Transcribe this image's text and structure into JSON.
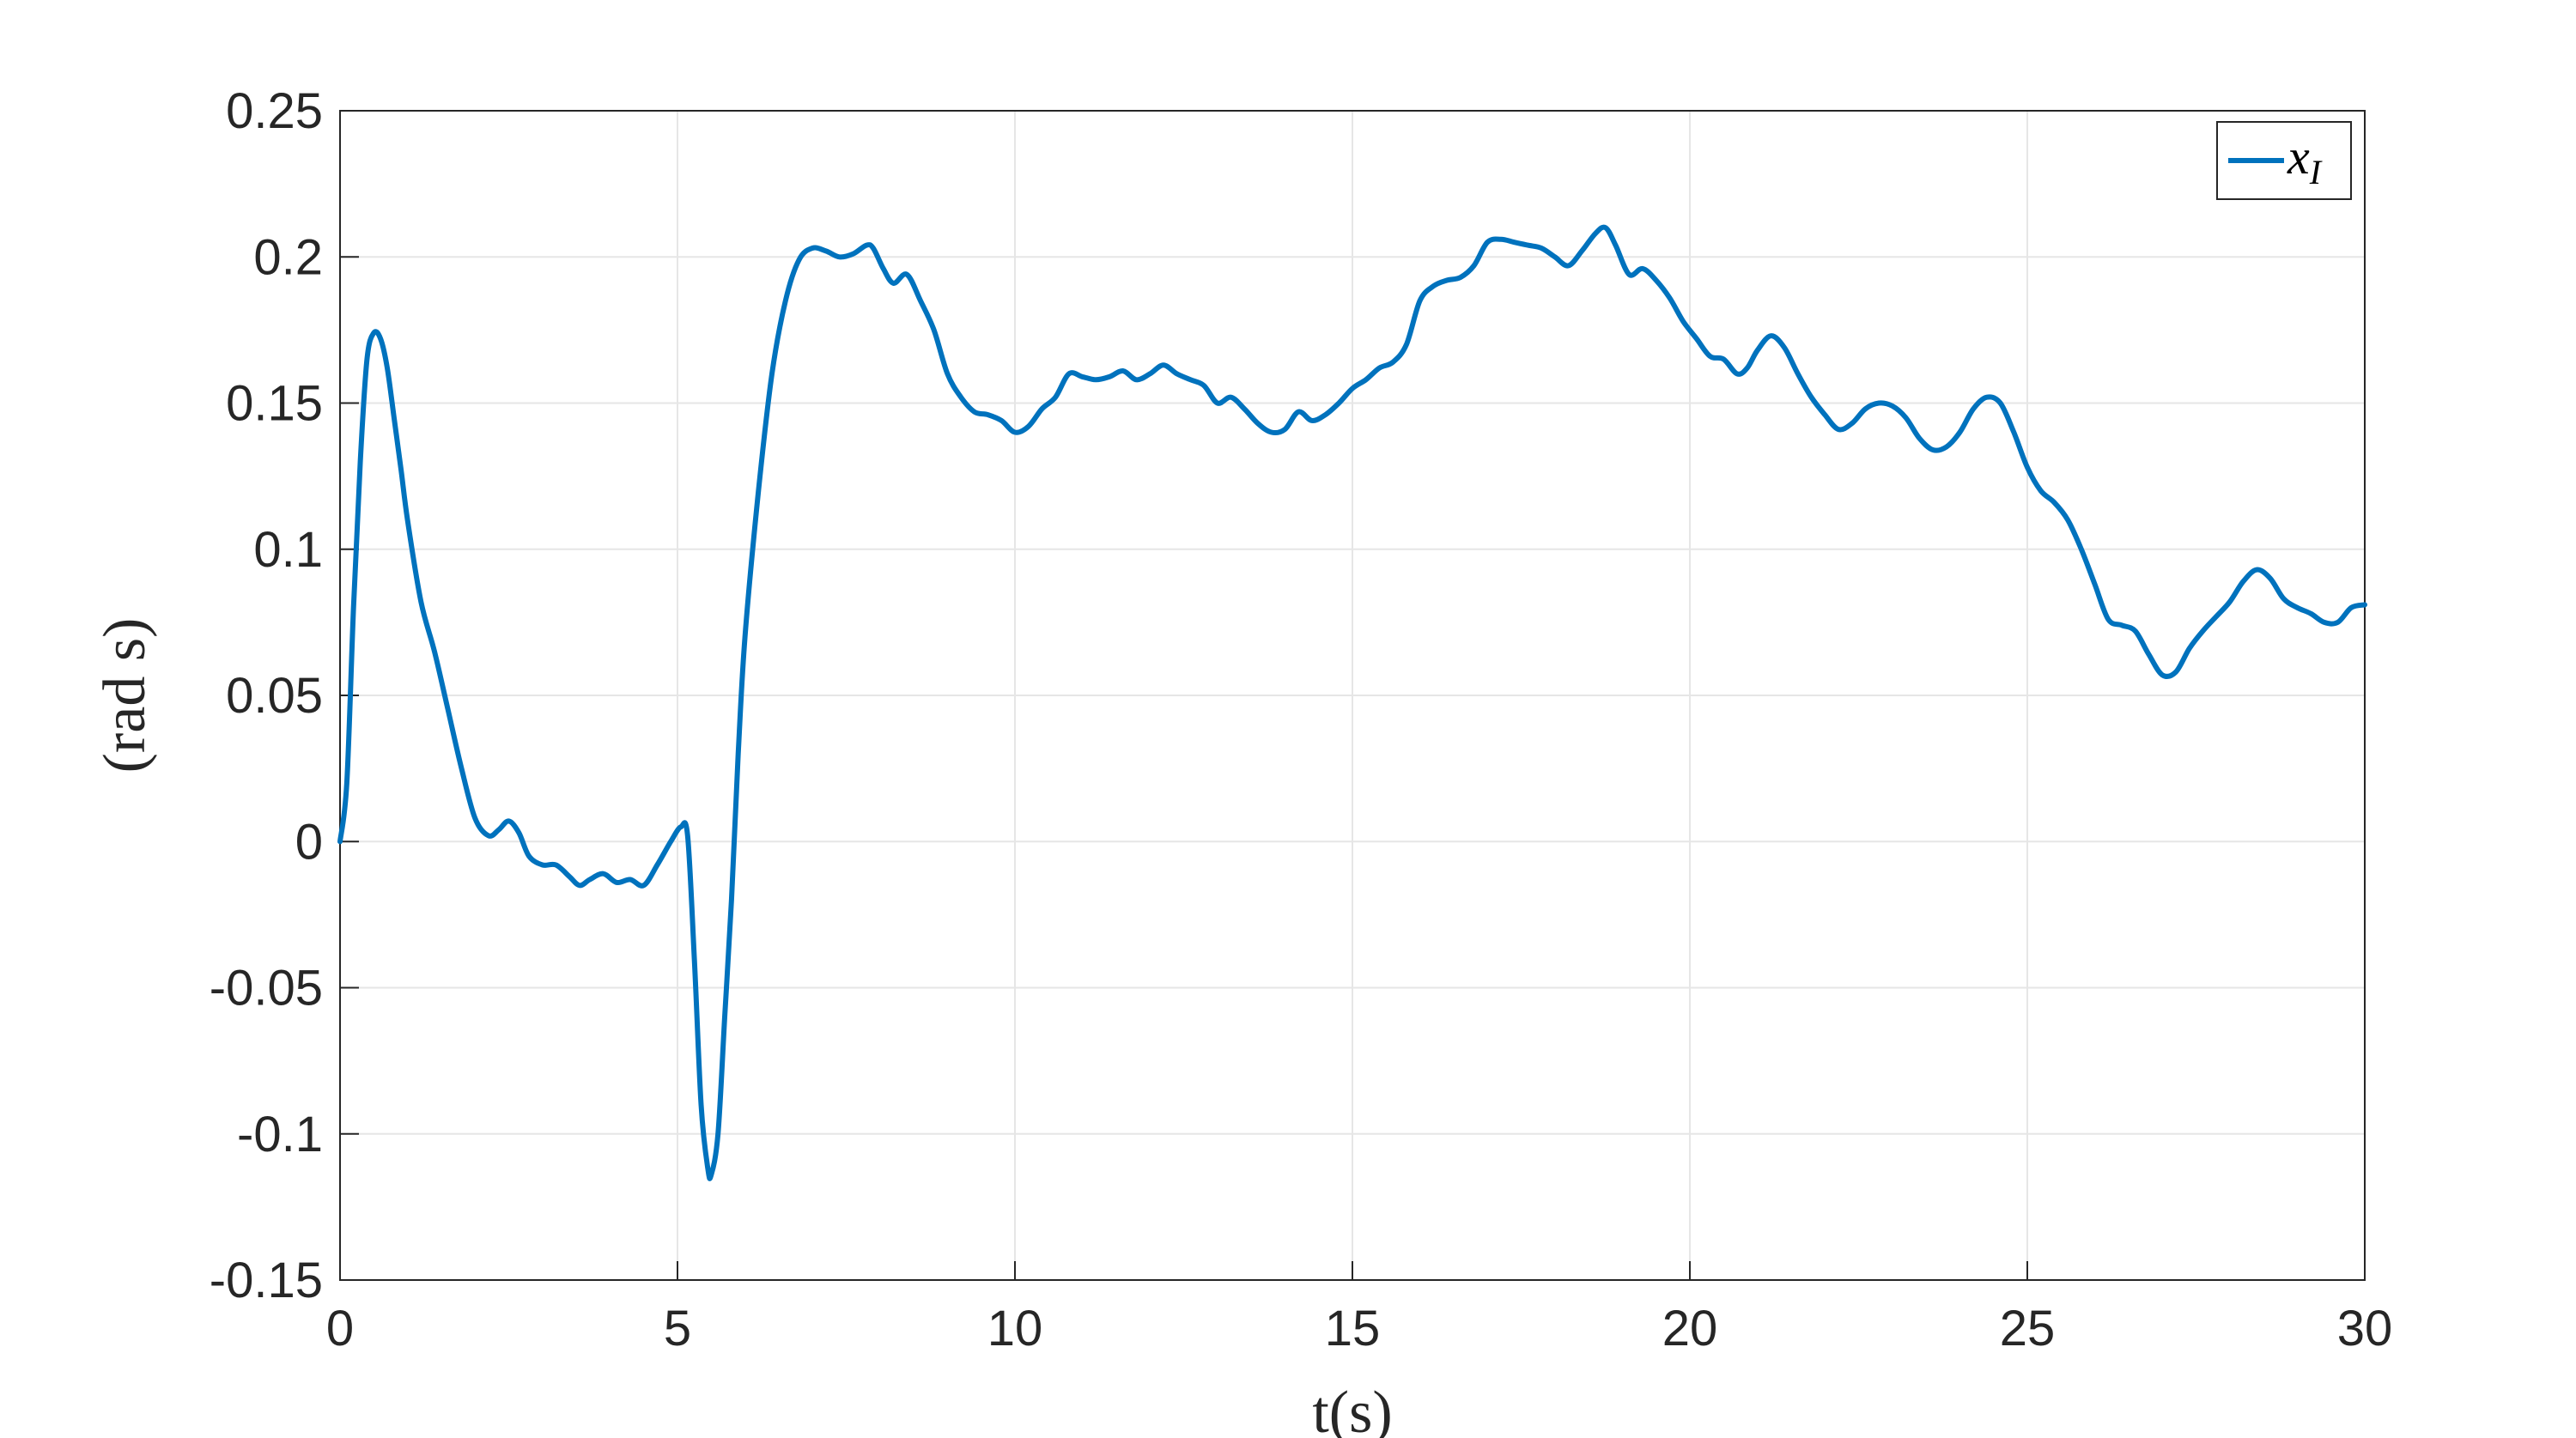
{
  "chart_data": {
    "type": "line",
    "title": "",
    "xlabel": "t(s)",
    "ylabel": "(rad s)",
    "xlim": [
      0,
      30
    ],
    "ylim": [
      -0.15,
      0.25
    ],
    "xticks": [
      "0",
      "5",
      "10",
      "15",
      "20",
      "25",
      "30"
    ],
    "yticks": [
      "0.25",
      "0.2",
      "0.15",
      "0.1",
      "0.05",
      "0",
      "-0.05",
      "-0.1",
      "-0.15"
    ],
    "grid": true,
    "legend_position": "top-right",
    "series": [
      {
        "name": "x_I",
        "color": "#0072BD",
        "points": [
          [
            0,
            0
          ],
          [
            0.1,
            0.02
          ],
          [
            0.2,
            0.08
          ],
          [
            0.3,
            0.13
          ],
          [
            0.4,
            0.165
          ],
          [
            0.5,
            0.174
          ],
          [
            0.6,
            0.172
          ],
          [
            0.7,
            0.162
          ],
          [
            0.8,
            0.145
          ],
          [
            0.9,
            0.128
          ],
          [
            1.0,
            0.11
          ],
          [
            1.2,
            0.082
          ],
          [
            1.4,
            0.065
          ],
          [
            1.6,
            0.045
          ],
          [
            1.8,
            0.025
          ],
          [
            2.0,
            0.008
          ],
          [
            2.2,
            0.002
          ],
          [
            2.35,
            0.004
          ],
          [
            2.5,
            0.007
          ],
          [
            2.65,
            0.003
          ],
          [
            2.8,
            -0.005
          ],
          [
            3.0,
            -0.008
          ],
          [
            3.2,
            -0.008
          ],
          [
            3.4,
            -0.012
          ],
          [
            3.55,
            -0.015
          ],
          [
            3.7,
            -0.013
          ],
          [
            3.9,
            -0.011
          ],
          [
            4.1,
            -0.014
          ],
          [
            4.3,
            -0.013
          ],
          [
            4.5,
            -0.015
          ],
          [
            4.7,
            -0.008
          ],
          [
            4.9,
            0.0
          ],
          [
            5.05,
            0.005
          ],
          [
            5.15,
            0.002
          ],
          [
            5.25,
            -0.04
          ],
          [
            5.35,
            -0.09
          ],
          [
            5.45,
            -0.112
          ],
          [
            5.5,
            -0.114
          ],
          [
            5.6,
            -0.1
          ],
          [
            5.7,
            -0.06
          ],
          [
            5.8,
            -0.02
          ],
          [
            5.9,
            0.03
          ],
          [
            6.0,
            0.07
          ],
          [
            6.2,
            0.12
          ],
          [
            6.4,
            0.16
          ],
          [
            6.6,
            0.185
          ],
          [
            6.8,
            0.199
          ],
          [
            7.0,
            0.203
          ],
          [
            7.2,
            0.202
          ],
          [
            7.4,
            0.2
          ],
          [
            7.6,
            0.201
          ],
          [
            7.8,
            0.204
          ],
          [
            7.9,
            0.203
          ],
          [
            8.05,
            0.196
          ],
          [
            8.2,
            0.191
          ],
          [
            8.4,
            0.194
          ],
          [
            8.6,
            0.185
          ],
          [
            8.8,
            0.175
          ],
          [
            9.0,
            0.16
          ],
          [
            9.2,
            0.152
          ],
          [
            9.4,
            0.147
          ],
          [
            9.6,
            0.146
          ],
          [
            9.8,
            0.144
          ],
          [
            10.0,
            0.14
          ],
          [
            10.2,
            0.142
          ],
          [
            10.4,
            0.148
          ],
          [
            10.6,
            0.152
          ],
          [
            10.8,
            0.16
          ],
          [
            11.0,
            0.159
          ],
          [
            11.2,
            0.158
          ],
          [
            11.4,
            0.159
          ],
          [
            11.6,
            0.161
          ],
          [
            11.8,
            0.158
          ],
          [
            12.0,
            0.16
          ],
          [
            12.2,
            0.163
          ],
          [
            12.4,
            0.16
          ],
          [
            12.6,
            0.158
          ],
          [
            12.8,
            0.156
          ],
          [
            13.0,
            0.15
          ],
          [
            13.2,
            0.152
          ],
          [
            13.4,
            0.148
          ],
          [
            13.6,
            0.143
          ],
          [
            13.8,
            0.14
          ],
          [
            14.0,
            0.141
          ],
          [
            14.2,
            0.147
          ],
          [
            14.4,
            0.144
          ],
          [
            14.6,
            0.146
          ],
          [
            14.8,
            0.15
          ],
          [
            15.0,
            0.155
          ],
          [
            15.2,
            0.158
          ],
          [
            15.4,
            0.162
          ],
          [
            15.6,
            0.164
          ],
          [
            15.8,
            0.17
          ],
          [
            16.0,
            0.185
          ],
          [
            16.2,
            0.19
          ],
          [
            16.4,
            0.192
          ],
          [
            16.6,
            0.193
          ],
          [
            16.8,
            0.197
          ],
          [
            17.0,
            0.205
          ],
          [
            17.2,
            0.206
          ],
          [
            17.4,
            0.205
          ],
          [
            17.6,
            0.204
          ],
          [
            17.8,
            0.203
          ],
          [
            18.0,
            0.2
          ],
          [
            18.2,
            0.197
          ],
          [
            18.4,
            0.202
          ],
          [
            18.6,
            0.208
          ],
          [
            18.75,
            0.21
          ],
          [
            18.9,
            0.204
          ],
          [
            19.1,
            0.194
          ],
          [
            19.3,
            0.196
          ],
          [
            19.5,
            0.192
          ],
          [
            19.7,
            0.186
          ],
          [
            19.9,
            0.178
          ],
          [
            20.1,
            0.172
          ],
          [
            20.3,
            0.166
          ],
          [
            20.5,
            0.165
          ],
          [
            20.7,
            0.16
          ],
          [
            20.85,
            0.162
          ],
          [
            21.0,
            0.168
          ],
          [
            21.2,
            0.173
          ],
          [
            21.4,
            0.169
          ],
          [
            21.6,
            0.16
          ],
          [
            21.8,
            0.152
          ],
          [
            22.0,
            0.146
          ],
          [
            22.2,
            0.141
          ],
          [
            22.4,
            0.143
          ],
          [
            22.6,
            0.148
          ],
          [
            22.8,
            0.15
          ],
          [
            23.0,
            0.149
          ],
          [
            23.2,
            0.145
          ],
          [
            23.4,
            0.138
          ],
          [
            23.6,
            0.134
          ],
          [
            23.8,
            0.135
          ],
          [
            24.0,
            0.14
          ],
          [
            24.2,
            0.148
          ],
          [
            24.4,
            0.152
          ],
          [
            24.6,
            0.15
          ],
          [
            24.8,
            0.14
          ],
          [
            25.0,
            0.128
          ],
          [
            25.2,
            0.12
          ],
          [
            25.4,
            0.116
          ],
          [
            25.6,
            0.11
          ],
          [
            25.8,
            0.1
          ],
          [
            26.0,
            0.088
          ],
          [
            26.2,
            0.076
          ],
          [
            26.4,
            0.074
          ],
          [
            26.6,
            0.072
          ],
          [
            26.8,
            0.064
          ],
          [
            27.0,
            0.057
          ],
          [
            27.2,
            0.058
          ],
          [
            27.4,
            0.066
          ],
          [
            27.6,
            0.072
          ],
          [
            27.8,
            0.077
          ],
          [
            28.0,
            0.082
          ],
          [
            28.2,
            0.089
          ],
          [
            28.4,
            0.093
          ],
          [
            28.6,
            0.09
          ],
          [
            28.8,
            0.083
          ],
          [
            29.0,
            0.08
          ],
          [
            29.2,
            0.078
          ],
          [
            29.4,
            0.075
          ],
          [
            29.6,
            0.075
          ],
          [
            29.8,
            0.08
          ],
          [
            30.0,
            0.081
          ]
        ]
      }
    ]
  },
  "legend": {
    "label": "x",
    "subscript": "I"
  }
}
